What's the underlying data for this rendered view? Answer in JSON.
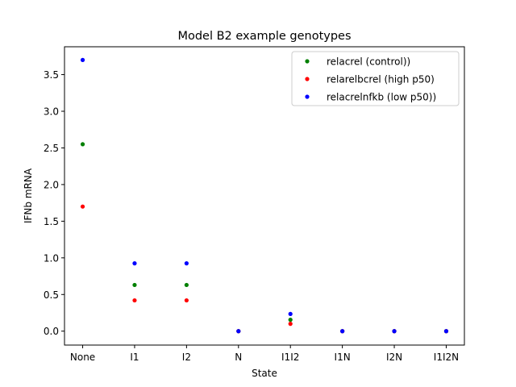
{
  "chart_data": {
    "type": "scatter",
    "title": "Model B2 example genotypes",
    "xlabel": "State",
    "ylabel": "IFNb mRNA",
    "categories": [
      "None",
      "I1",
      "I2",
      "N",
      "I1I2",
      "I1N",
      "I2N",
      "I1I2N"
    ],
    "ylim": [
      -0.19,
      3.88
    ],
    "yticks": [
      "0.0",
      "0.5",
      "1.0",
      "1.5",
      "2.0",
      "2.5",
      "3.0",
      "3.5"
    ],
    "grid": false,
    "legend_position": "top-right",
    "series": [
      {
        "name": "relacrel (control))",
        "color": "#008000",
        "values": [
          2.55,
          0.63,
          0.63,
          0.0,
          0.155,
          0.0,
          0.0,
          0.0
        ]
      },
      {
        "name": "relarelbcrel (high p50)",
        "color": "#ff0000",
        "values": [
          1.7,
          0.42,
          0.42,
          0.0,
          0.1,
          0.0,
          0.0,
          0.0
        ]
      },
      {
        "name": "relacrelnfkb (low p50))",
        "color": "#0000ff",
        "values": [
          3.7,
          0.925,
          0.925,
          0.0,
          0.235,
          0.0,
          0.0,
          0.0
        ]
      }
    ]
  }
}
